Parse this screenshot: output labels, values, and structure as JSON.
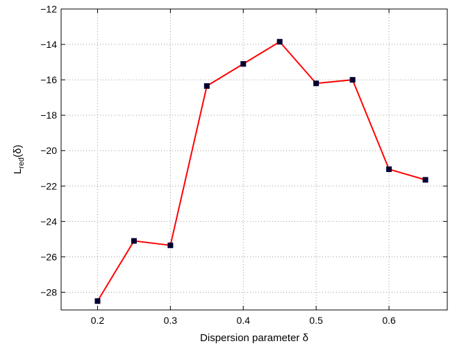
{
  "chart_data": {
    "type": "line",
    "title": "",
    "xlabel": "Dispersion parameter δ",
    "ylabel_main": "L",
    "ylabel_sub": "red",
    "ylabel_suffix": "(δ)",
    "xlim": [
      0.15,
      0.68
    ],
    "ylim": [
      -29,
      -12
    ],
    "xticks": [
      0.2,
      0.3,
      0.4,
      0.5,
      0.6
    ],
    "xtick_labels": [
      "0.2",
      "0.3",
      "0.4",
      "0.5",
      "0.6"
    ],
    "yticks": [
      -28,
      -26,
      -24,
      -22,
      -20,
      -18,
      -16,
      -14,
      -12
    ],
    "ytick_labels": [
      "−28",
      "−26",
      "−24",
      "−22",
      "−20",
      "−18",
      "−16",
      "−14",
      "−12"
    ],
    "grid": true,
    "series": [
      {
        "x": [
          0.2,
          0.25,
          0.3,
          0.35,
          0.4,
          0.45,
          0.5,
          0.55,
          0.6,
          0.65
        ],
        "y": [
          -28.5,
          -25.1,
          -25.35,
          -16.35,
          -15.1,
          -13.85,
          -16.2,
          -16.0,
          -21.05,
          -21.65
        ],
        "line_color": "#ff0000",
        "marker": "square",
        "marker_color": "#000033"
      }
    ]
  }
}
